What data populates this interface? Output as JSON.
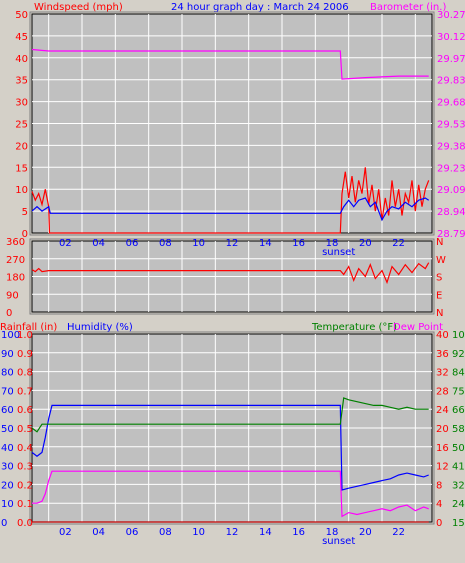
{
  "header": {
    "left_label": "Windspeed (mph)",
    "title": "24 hour graph day : March 24 2006",
    "right_label": "Barometer (in.)"
  },
  "colors": {
    "background": "#d4d0c8",
    "plot": "#c0c0c0",
    "red": "#ff0000",
    "blue": "#0000ff",
    "magenta": "#ff00ff",
    "green": "#008000",
    "dark_red": "#c00000"
  },
  "x_axis": {
    "hour_labels": [
      "02",
      "04",
      "06",
      "08",
      "10",
      "12",
      "14",
      "16",
      "18",
      "20",
      "22"
    ],
    "sunset_label": "sunset"
  },
  "chart_data": [
    {
      "type": "line",
      "title": "24 hour graph day : March 24 2006",
      "xlabel": "",
      "ylabel": "Windspeed (mph)",
      "ylabel_right": "Barometer (in.)",
      "xlim": [
        0,
        24
      ],
      "ylim": [
        0,
        50
      ],
      "ylim_right": [
        28.79,
        30.27
      ],
      "y_ticks": [
        "0",
        "5",
        "10",
        "15",
        "20",
        "25",
        "30",
        "35",
        "40",
        "45",
        "50"
      ],
      "y_right_ticks": [
        "28.79",
        "28.94",
        "29.09",
        "29.23",
        "29.38",
        "29.53",
        "29.68",
        "29.83",
        "29.97",
        "30.12",
        "30.27"
      ],
      "grid": true,
      "series": [
        {
          "name": "Windspeed (mph)",
          "axis": "left",
          "color": "#ff0000",
          "x": [
            0.0,
            0.2,
            0.4,
            0.6,
            0.8,
            1.0,
            1.05,
            18.5,
            18.6,
            18.8,
            19.0,
            19.2,
            19.4,
            19.6,
            19.8,
            20.0,
            20.2,
            20.4,
            20.6,
            20.8,
            21.0,
            21.2,
            21.4,
            21.6,
            21.8,
            22.0,
            22.2,
            22.4,
            22.6,
            22.8,
            23.0,
            23.2,
            23.4,
            23.6,
            23.8
          ],
          "y": [
            9.5,
            7.5,
            9.0,
            6.5,
            10.0,
            6.0,
            0.0,
            0.0,
            9.0,
            14.0,
            8.0,
            13.0,
            7.0,
            12.0,
            9.0,
            15.0,
            6.5,
            11.0,
            5.0,
            10.0,
            3.0,
            8.0,
            4.0,
            12.0,
            6.0,
            10.0,
            4.0,
            9.0,
            7.0,
            12.0,
            5.0,
            11.0,
            6.0,
            10.0,
            12.0
          ]
        },
        {
          "name": "Barometer (in.)",
          "axis": "left",
          "color": "#0000ff",
          "x": [
            0.0,
            0.3,
            0.6,
            1.0,
            1.1,
            18.5,
            18.7,
            19.0,
            19.3,
            19.6,
            20.0,
            20.3,
            20.6,
            21.0,
            21.3,
            21.6,
            22.0,
            22.4,
            22.8,
            23.2,
            23.6,
            23.8
          ],
          "y": [
            5.0,
            6.0,
            5.0,
            6.0,
            4.5,
            4.5,
            6.0,
            7.5,
            6.0,
            7.5,
            8.0,
            6.0,
            7.0,
            3.0,
            5.0,
            6.0,
            5.5,
            7.0,
            6.0,
            7.5,
            8.0,
            7.5
          ]
        },
        {
          "name": "Barometer (in.)",
          "axis": "right",
          "color": "#ff00ff",
          "x": [
            0.0,
            1.0,
            18.5,
            18.6,
            20.0,
            22.0,
            23.8
          ],
          "y": [
            30.03,
            30.02,
            30.02,
            29.83,
            29.84,
            29.85,
            29.85
          ]
        }
      ]
    },
    {
      "type": "line",
      "ylabel": "Wind direction",
      "xlim": [
        0,
        24
      ],
      "ylim": [
        0,
        360
      ],
      "y_ticks": [
        "0",
        "90",
        "180",
        "270",
        "360"
      ],
      "compass_labels": [
        "N",
        "W",
        "S",
        "E",
        "N"
      ],
      "grid": true,
      "series": [
        {
          "name": "Wind direction",
          "color": "#ff0000",
          "x": [
            0.0,
            0.2,
            0.4,
            0.6,
            1.0,
            18.5,
            18.7,
            19.0,
            19.3,
            19.6,
            20.0,
            20.3,
            20.6,
            21.0,
            21.3,
            21.6,
            22.0,
            22.4,
            22.8,
            23.2,
            23.6,
            23.8
          ],
          "y": [
            215,
            205,
            220,
            205,
            210,
            210,
            190,
            230,
            160,
            220,
            180,
            240,
            170,
            210,
            150,
            230,
            190,
            240,
            200,
            245,
            220,
            250
          ]
        }
      ]
    },
    {
      "type": "line",
      "header_left_1": "Rainfall (in)",
      "header_left_2": "Humidity (%)",
      "header_right_1": "Temperature (°F)",
      "header_right_2": "Dew Point",
      "xlim": [
        0,
        24
      ],
      "ylim": [
        0,
        100
      ],
      "y_ticks_humidity": [
        "0",
        "10",
        "20",
        "30",
        "40",
        "50",
        "60",
        "70",
        "80",
        "90",
        "100"
      ],
      "y_ticks_rainfall": [
        "0.0",
        "0.1",
        "0.2",
        "0.3",
        "0.4",
        "0.5",
        "0.6",
        "0.7",
        "0.8",
        "0.9",
        "1.0"
      ],
      "y_ticks_temp_c": [
        "0",
        "4",
        "8",
        "12",
        "16",
        "20",
        "24",
        "28",
        "32",
        "36",
        "40"
      ],
      "y_ticks_temp_f": [
        "15",
        "24",
        "32",
        "41",
        "50",
        "58",
        "66",
        "75",
        "84",
        "92",
        "100"
      ],
      "grid": true,
      "series": [
        {
          "name": "Humidity (%)",
          "color": "#0000ff",
          "x": [
            0.0,
            0.3,
            0.6,
            0.8,
            1.0,
            1.2,
            18.5,
            18.6,
            19.0,
            19.5,
            20.0,
            20.5,
            21.0,
            21.5,
            22.0,
            22.5,
            23.0,
            23.5,
            23.8
          ],
          "y": [
            37,
            35,
            37,
            45,
            55,
            62,
            62,
            17,
            18,
            19,
            20,
            21,
            22,
            23,
            25,
            26,
            25,
            24,
            25
          ]
        },
        {
          "name": "Temperature (°F)",
          "color": "#008000",
          "x": [
            0.0,
            0.3,
            0.6,
            1.0,
            18.5,
            18.7,
            19.0,
            19.5,
            20.0,
            20.5,
            21.0,
            21.5,
            22.0,
            22.5,
            23.0,
            23.5,
            23.8
          ],
          "y": [
            50,
            48,
            52,
            52,
            52,
            66,
            65,
            64,
            63,
            62,
            62,
            61,
            60,
            61,
            60,
            60,
            60
          ]
        },
        {
          "name": "Dew Point",
          "color": "#ff00ff",
          "x": [
            0.0,
            0.3,
            0.6,
            0.8,
            1.0,
            1.2,
            18.5,
            18.6,
            19.0,
            19.5,
            20.0,
            20.5,
            21.0,
            21.5,
            22.0,
            22.5,
            23.0,
            23.5,
            23.8
          ],
          "y": [
            10,
            10,
            11,
            15,
            22,
            27,
            27,
            3,
            5,
            4,
            5,
            6,
            7,
            6,
            8,
            9,
            6,
            8,
            7
          ]
        },
        {
          "name": "Rainfall (in)",
          "color": "#c00000",
          "x": [
            0.0,
            23.8
          ],
          "y": [
            0.0,
            0.0
          ]
        }
      ]
    }
  ]
}
